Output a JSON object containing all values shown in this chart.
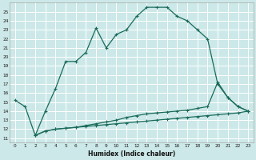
{
  "xlabel": "Humidex (Indice chaleur)",
  "background_color": "#cce8e8",
  "grid_color": "#ffffff",
  "line_color": "#1a6b5a",
  "xlim": [
    -0.5,
    23.5
  ],
  "ylim": [
    10.5,
    26.0
  ],
  "xticks": [
    0,
    1,
    2,
    3,
    4,
    5,
    6,
    7,
    8,
    9,
    10,
    11,
    12,
    13,
    14,
    15,
    16,
    17,
    18,
    19,
    20,
    21,
    22,
    23
  ],
  "yticks": [
    11,
    12,
    13,
    14,
    15,
    16,
    17,
    18,
    19,
    20,
    21,
    22,
    23,
    24,
    25
  ],
  "line1_x": [
    0,
    1,
    2,
    3,
    4,
    5,
    6,
    7,
    8,
    9,
    10,
    11,
    12,
    13,
    14,
    15,
    16,
    17,
    18,
    19,
    20,
    21,
    22,
    23
  ],
  "line1_y": [
    15.2,
    14.5,
    11.3,
    14.0,
    16.5,
    19.5,
    19.5,
    20.5,
    23.2,
    21.0,
    22.5,
    23.0,
    24.5,
    25.5,
    25.5,
    25.5,
    24.5,
    24.0,
    23.0,
    22.0,
    17.0,
    15.5,
    14.5,
    14.0
  ],
  "line2_x": [
    2,
    3,
    4,
    5,
    6,
    7,
    8,
    9,
    10,
    11,
    12,
    13,
    14,
    15,
    16,
    17,
    18,
    19,
    20,
    21,
    22,
    23
  ],
  "line2_y": [
    11.3,
    11.8,
    12.0,
    12.1,
    12.2,
    12.4,
    12.6,
    12.8,
    13.0,
    13.3,
    13.5,
    13.7,
    13.8,
    13.9,
    14.0,
    14.1,
    14.3,
    14.5,
    17.2,
    15.5,
    14.5,
    14.0
  ],
  "line3_x": [
    2,
    3,
    4,
    5,
    6,
    7,
    8,
    9,
    10,
    11,
    12,
    13,
    14,
    15,
    16,
    17,
    18,
    19,
    20,
    21,
    22,
    23
  ],
  "line3_y": [
    11.3,
    11.8,
    12.0,
    12.1,
    12.2,
    12.3,
    12.4,
    12.5,
    12.6,
    12.7,
    12.8,
    12.9,
    13.0,
    13.1,
    13.2,
    13.3,
    13.4,
    13.5,
    13.6,
    13.7,
    13.8,
    14.0
  ]
}
